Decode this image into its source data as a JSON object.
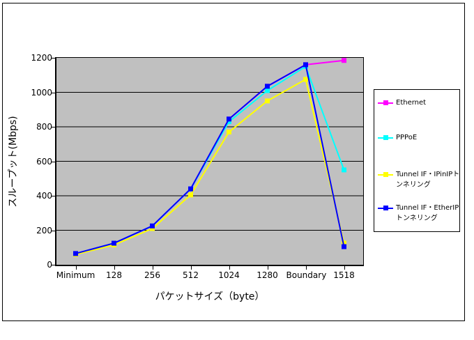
{
  "chart_data": {
    "type": "line",
    "categories": [
      "Minimum",
      "128",
      "256",
      "512",
      "1024",
      "1280",
      "Boundary",
      "1518"
    ],
    "series": [
      {
        "name": "Ethernet",
        "color": "#FF00FF",
        "values": [
          65,
          125,
          225,
          440,
          845,
          1035,
          1160,
          1185
        ]
      },
      {
        "name": "PPPoE",
        "color": "#00FFFF",
        "values": [
          65,
          125,
          225,
          440,
          830,
          1010,
          1150,
          550
        ]
      },
      {
        "name": "Tunnel IF・IPinIPトンネリング",
        "color": "#FFFF00",
        "values": [
          60,
          115,
          210,
          405,
          770,
          950,
          1075,
          125
        ]
      },
      {
        "name": "Tunnel IF・EtherIPトンネリング",
        "color": "#0000FF",
        "values": [
          65,
          125,
          225,
          440,
          845,
          1035,
          1160,
          105
        ]
      }
    ],
    "title": "",
    "xlabel": "パケットサイズ（byte）",
    "ylabel": "スループット(Mbps)",
    "ylim": [
      0,
      1200
    ],
    "y_ticks": [
      0,
      200,
      400,
      600,
      800,
      1000,
      1200
    ],
    "grid": "horizontal-only",
    "gridline_color": "#000000",
    "plot_bg": "#C0C0C0",
    "chart_bg": "#FFFFFF",
    "legend_position": "right",
    "marker": "square"
  }
}
